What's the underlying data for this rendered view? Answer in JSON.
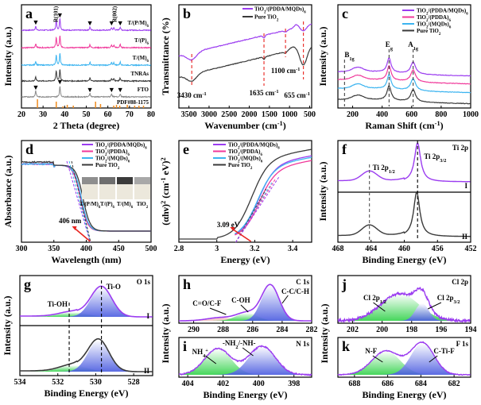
{
  "colors": {
    "purple": "#9b3cf0",
    "pink": "#f0389a",
    "cyan": "#3cb4f0",
    "black": "#3a3a3a",
    "gray": "#8a8a8a",
    "orange": "#f08c1e",
    "red": "#e8231e",
    "fit_blue": "#5a6be0",
    "fit_green": "#3cdc50"
  },
  "chart_data": [
    {
      "panel": "a",
      "type": "line",
      "title": "",
      "xlabel": "2 Theta (degree)",
      "ylabel": "Intensity (a.u.)",
      "xlim": [
        20,
        80
      ],
      "xticks": [
        20,
        30,
        40,
        50,
        60,
        70,
        80
      ],
      "series": [
        {
          "name": "T/(P/M)6",
          "color": "purple",
          "peaks": [
            26.6,
            36.1,
            37.8,
            51.7,
            61.7,
            62.8,
            65.7
          ]
        },
        {
          "name": "T/(P)6",
          "color": "pink",
          "peaks": [
            26.6,
            36.1,
            37.8,
            51.7,
            61.7,
            62.8,
            65.7
          ]
        },
        {
          "name": "T/(M)6",
          "color": "cyan",
          "peaks": [
            26.6,
            36.1,
            37.8,
            51.7,
            61.7,
            62.8,
            65.7
          ]
        },
        {
          "name": "TNRAs",
          "color": "black",
          "peaks": [
            26.6,
            36.1,
            37.8,
            51.7,
            61.7,
            62.8,
            65.7
          ]
        },
        {
          "name": "FTO",
          "color": "gray",
          "peaks": [
            26.6,
            37.8,
            51.7,
            61.7,
            65.7
          ]
        }
      ],
      "reference": {
        "name": "PDF#88-1175",
        "color": "orange",
        "lines": [
          27.4,
          36.1,
          39.2,
          41.2,
          44.0,
          54.3,
          56.6,
          62.7,
          64.0,
          65.5,
          69.0,
          72.4,
          74.4,
          76.5
        ]
      },
      "annotations": [
        "R(101)",
        "R(002)"
      ],
      "marker_positions": [
        26.6,
        37.8,
        51.7,
        61.7,
        65.7
      ]
    },
    {
      "panel": "b",
      "type": "line",
      "xlabel": "Wavenumber (cm-1)",
      "ylabel": "Transmittance (%)",
      "xlim": [
        3750,
        450
      ],
      "xticks": [
        3500,
        3000,
        2500,
        2000,
        1500,
        1000,
        500
      ],
      "series": [
        {
          "name": "TiO2/(PDDA/MQDs)6",
          "color": "purple"
        },
        {
          "name": "Pure TiO2",
          "color": "black"
        }
      ],
      "annotations": [
        {
          "text": "3430 cm-1",
          "x": 3430
        },
        {
          "text": "1635 cm-1",
          "x": 1635
        },
        {
          "text": "1100 cm-1",
          "x": 1100
        },
        {
          "text": "655 cm-1",
          "x": 655
        }
      ]
    },
    {
      "panel": "c",
      "type": "line",
      "xlabel": "Raman Shift (cm-1)",
      "ylabel": "Intensity (a.u.)",
      "xlim": [
        100,
        1000
      ],
      "xticks": [
        200,
        400,
        600,
        800,
        1000
      ],
      "series": [
        {
          "name": "TiO2/(PDDA/MQDs)6",
          "color": "purple"
        },
        {
          "name": "TiO2/(PDDA)6",
          "color": "pink"
        },
        {
          "name": "TiO2/(MQDs)6",
          "color": "cyan"
        },
        {
          "name": "Pure TiO2",
          "color": "black"
        }
      ],
      "annotations": [
        {
          "text": "B1g",
          "x": 145
        },
        {
          "text": "Eg",
          "x": 447
        },
        {
          "text": "A1g",
          "x": 610
        }
      ],
      "legend": "top-right"
    },
    {
      "panel": "d",
      "type": "line",
      "xlabel": "Wavelength (nm)",
      "ylabel": "Absorbance (a.u.)",
      "xlim": [
        300,
        500
      ],
      "xticks": [
        300,
        350,
        400,
        450,
        500
      ],
      "series": [
        {
          "name": "TiO2/(PDDA/MQDs)6",
          "color": "purple"
        },
        {
          "name": "TiO2/(PDDA)6",
          "color": "pink"
        },
        {
          "name": "TiO2/(MQDs)6",
          "color": "cyan"
        },
        {
          "name": "Pure TiO2",
          "color": "black"
        }
      ],
      "annotations": [
        {
          "text": "406 nm",
          "x": 406
        }
      ],
      "inset_labels": [
        "T/(P/M)6",
        "T/(P)6",
        "T/(M)6",
        "TiO2"
      ],
      "legend": "top-right"
    },
    {
      "panel": "e",
      "type": "line",
      "xlabel": "Energy (eV)",
      "ylabel": "(αhν)2 (cm-1 eV)2",
      "xlim": [
        2.8,
        3.5
      ],
      "xticks": [
        2.8,
        3.0,
        3.2,
        3.4
      ],
      "series": [
        {
          "name": "TiO2/(PDDA/MQDs)6",
          "color": "purple"
        },
        {
          "name": "TiO2/(PDDA)6",
          "color": "pink"
        },
        {
          "name": "TiO2/(MQDs)6",
          "color": "cyan"
        },
        {
          "name": "Pure TiO2",
          "color": "black"
        }
      ],
      "annotations": [
        {
          "text": "3.09 eV",
          "x": 3.09
        }
      ],
      "legend": "top-left"
    },
    {
      "panel": "f",
      "type": "line",
      "xlabel": "Binding Energy (eV)",
      "ylabel": "Intensity (a.u.)",
      "xlim": [
        468,
        452
      ],
      "xticks": [
        468,
        464,
        460,
        456,
        452
      ],
      "corner_label": "Ti 2p",
      "series": [
        {
          "name": "I",
          "color": "purple"
        },
        {
          "name": "II",
          "color": "black"
        }
      ],
      "annotations": [
        {
          "text": "Ti 2p1/2",
          "x": 464.2
        },
        {
          "text": "Ti 2p3/2",
          "x": 458.5
        }
      ]
    },
    {
      "panel": "g",
      "type": "line",
      "xlabel": "Binding Energy (eV)",
      "ylabel": "Intensity (a.u.)",
      "xlim": [
        534,
        527
      ],
      "xticks": [
        534,
        532,
        530,
        528
      ],
      "corner_label": "O 1s",
      "series": [
        {
          "name": "I",
          "color": "purple"
        },
        {
          "name": "II",
          "color": "black"
        }
      ],
      "annotations": [
        {
          "text": "Ti-OH",
          "x": 531.4
        },
        {
          "text": "Ti-O",
          "x": 529.7
        }
      ]
    },
    {
      "panel": "h",
      "type": "line",
      "xlim": [
        291,
        282
      ],
      "xticks": [
        290,
        288,
        286,
        284,
        282
      ],
      "corner_label": "C 1s",
      "annotations": [
        {
          "text": "C=O/C-F",
          "x": 288.2
        },
        {
          "text": "C-OH",
          "x": 286.4
        },
        {
          "text": "C-C/C-H",
          "x": 284.8
        }
      ]
    },
    {
      "panel": "i",
      "type": "line",
      "xlabel": "Binding Energy (eV)",
      "ylabel": "Intensity (a.u.)",
      "xlim": [
        404.5,
        397
      ],
      "xticks": [
        404,
        402,
        400,
        398
      ],
      "corner_label": "N 1s",
      "annotations": [
        {
          "text": "NH4+",
          "x": 402.3
        },
        {
          "text": "-NH2/-NH-",
          "x": 399.8
        }
      ]
    },
    {
      "panel": "j",
      "type": "line",
      "xlim": [
        203,
        194
      ],
      "xticks": [
        202,
        200,
        198,
        196,
        194
      ],
      "corner_label": "Cl 2p",
      "annotations": [
        {
          "text": "Cl 2p1/2",
          "x": 198.8
        },
        {
          "text": "Cl 2p3/2",
          "x": 197.3
        }
      ]
    },
    {
      "panel": "k",
      "type": "line",
      "xlabel": "Binding Energy (eV)",
      "ylabel": "Intensity (a.u.)",
      "xlim": [
        689,
        681
      ],
      "xticks": [
        688,
        686,
        684,
        682
      ],
      "corner_label": "F 1s",
      "annotations": [
        {
          "text": "N-F",
          "x": 686.1
        },
        {
          "text": "C-Ti-F",
          "x": 683.9
        }
      ]
    }
  ]
}
